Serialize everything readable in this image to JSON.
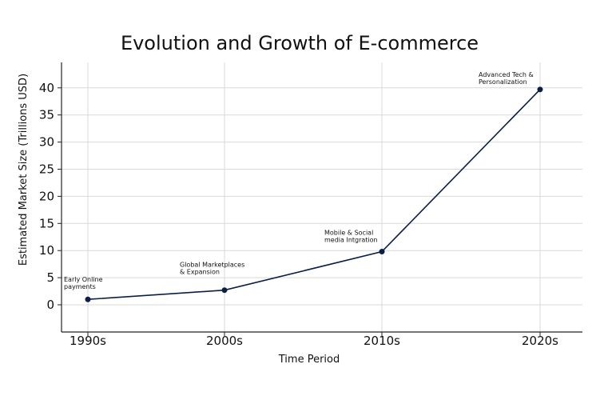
{
  "chart_data": {
    "type": "line",
    "title": "Evolution and Growth of E-commerce",
    "xlabel": "Time Period",
    "ylabel": "Estimated Market Size (Trillions USD)",
    "categories": [
      "1990s",
      "2000s",
      "2010s",
      "2020s"
    ],
    "series": [
      {
        "name": "Estimated Market Size",
        "values": [
          1,
          2.7,
          9.8,
          39.7
        ]
      }
    ],
    "annotations": [
      {
        "category": "1990s",
        "lines": [
          "Early Online",
          "payments"
        ]
      },
      {
        "category": "2000s",
        "lines": [
          "Global Marketplaces",
          "& Expansion"
        ]
      },
      {
        "category": "2010s",
        "lines": [
          "Mobile & Social",
          "media Intgration"
        ]
      },
      {
        "category": "2020s",
        "lines": [
          "Advanced Tech &",
          "Personalization"
        ]
      }
    ],
    "yticks": [
      0,
      5,
      10,
      15,
      20,
      25,
      30,
      35,
      40
    ],
    "ylim": [
      -5,
      43
    ],
    "grid": true,
    "line_color": "#0b1f45",
    "marker_color": "#0b1f45"
  }
}
